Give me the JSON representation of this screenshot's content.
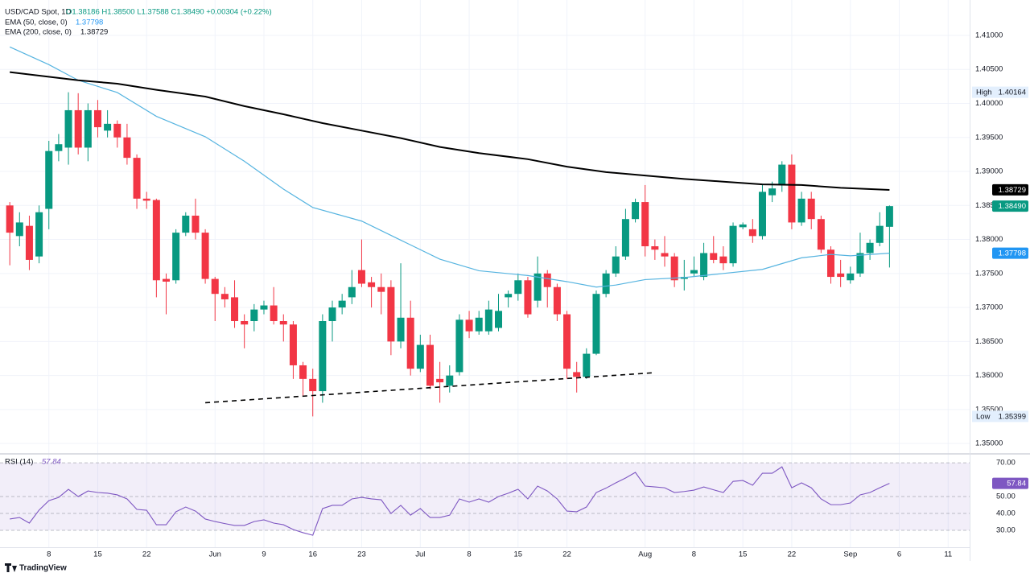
{
  "chart_data": [
    {
      "type": "candlestick",
      "title": "USD/CAD Spot, 1D",
      "subtitle": "O1.38186 H1.38500 L1.37588 C1.38490 +0.00304 (+0.22%)",
      "up_color": "#089981",
      "down_color": "#f23645",
      "x": [
        0,
        1,
        2,
        3,
        4,
        5,
        6,
        7,
        8,
        9,
        10,
        11,
        12,
        13,
        14,
        15,
        16,
        17,
        18,
        19,
        20,
        21,
        22,
        23,
        24,
        25,
        26,
        27,
        28,
        29,
        30,
        31,
        32,
        33,
        34,
        35,
        36,
        37,
        38,
        39,
        40,
        41,
        42,
        43,
        44,
        45,
        46,
        47,
        48,
        49,
        50,
        51,
        52,
        53,
        54,
        55,
        56,
        57,
        58,
        59,
        60,
        61,
        62,
        63,
        64,
        65,
        66,
        67,
        68,
        69,
        70,
        71,
        72,
        73,
        74,
        75,
        76,
        77,
        78,
        79,
        80,
        81,
        82,
        83,
        84,
        85,
        86,
        87,
        88,
        89,
        90
      ],
      "open": [
        1.385,
        1.3805,
        1.382,
        1.3775,
        1.3845,
        1.393,
        1.3935,
        1.399,
        1.3935,
        1.399,
        1.396,
        1.397,
        1.395,
        1.392,
        1.386,
        1.3858,
        1.3742,
        1.374,
        1.381,
        1.3835,
        1.381,
        1.3742,
        1.372,
        1.3715,
        1.368,
        1.368,
        1.3697,
        1.3703,
        1.368,
        1.3675,
        1.3615,
        1.3595,
        1.3577,
        1.368,
        1.37,
        1.3715,
        1.3755,
        1.3737,
        1.373,
        1.373,
        1.365,
        1.3685,
        1.361,
        1.3645,
        1.3595,
        1.3585,
        1.3605,
        1.3682,
        1.3665,
        1.3665,
        1.367,
        1.3715,
        1.372,
        1.374,
        1.371,
        1.375,
        1.373,
        1.369,
        1.3605,
        1.3598,
        1.3632,
        1.372,
        1.375,
        1.3775,
        1.383,
        1.3855,
        1.379,
        1.378,
        1.3775,
        1.3742,
        1.375,
        1.3745,
        1.378,
        1.3775,
        1.3765,
        1.3818,
        1.3815,
        1.3805,
        1.3865,
        1.388,
        1.391,
        1.3825,
        1.386,
        1.383,
        1.3785,
        1.375,
        1.374,
        1.375,
        1.378,
        1.3795,
        1.38186
      ],
      "high": [
        1.3855,
        1.384,
        1.3835,
        1.385,
        1.3945,
        1.3955,
        1.40164,
        1.4015,
        1.4,
        1.4005,
        1.399,
        1.3975,
        1.397,
        1.3925,
        1.387,
        1.386,
        1.375,
        1.3815,
        1.384,
        1.386,
        1.3815,
        1.3745,
        1.373,
        1.374,
        1.369,
        1.3705,
        1.371,
        1.373,
        1.369,
        1.368,
        1.362,
        1.361,
        1.369,
        1.371,
        1.372,
        1.3755,
        1.38,
        1.3745,
        1.375,
        1.374,
        1.3765,
        1.371,
        1.366,
        1.366,
        1.362,
        1.3615,
        1.369,
        1.3695,
        1.3695,
        1.371,
        1.372,
        1.3725,
        1.375,
        1.3745,
        1.3775,
        1.3755,
        1.3735,
        1.3695,
        1.362,
        1.364,
        1.3725,
        1.3755,
        1.379,
        1.3845,
        1.386,
        1.388,
        1.38,
        1.3805,
        1.378,
        1.377,
        1.3775,
        1.3795,
        1.3805,
        1.379,
        1.3825,
        1.3825,
        1.383,
        1.388,
        1.3885,
        1.3915,
        1.3925,
        1.387,
        1.387,
        1.3835,
        1.379,
        1.377,
        1.376,
        1.381,
        1.38,
        1.384,
        1.385
      ],
      "low": [
        1.3762,
        1.379,
        1.3755,
        1.3765,
        1.3815,
        1.3915,
        1.391,
        1.3925,
        1.3915,
        1.395,
        1.395,
        1.3935,
        1.391,
        1.3845,
        1.3845,
        1.3715,
        1.369,
        1.3735,
        1.3805,
        1.38,
        1.3735,
        1.368,
        1.37,
        1.367,
        1.364,
        1.3665,
        1.369,
        1.3675,
        1.365,
        1.3595,
        1.357,
        1.35399,
        1.356,
        1.365,
        1.369,
        1.3705,
        1.373,
        1.37,
        1.369,
        1.363,
        1.364,
        1.36,
        1.3605,
        1.358,
        1.356,
        1.3575,
        1.36,
        1.3655,
        1.366,
        1.366,
        1.3665,
        1.37,
        1.371,
        1.3685,
        1.37,
        1.37,
        1.368,
        1.3595,
        1.3575,
        1.3595,
        1.363,
        1.3715,
        1.3745,
        1.377,
        1.3825,
        1.3775,
        1.377,
        1.376,
        1.373,
        1.3725,
        1.3745,
        1.374,
        1.3765,
        1.3755,
        1.376,
        1.3815,
        1.3795,
        1.38,
        1.3855,
        1.387,
        1.3815,
        1.382,
        1.3815,
        1.378,
        1.3735,
        1.373,
        1.3735,
        1.3745,
        1.377,
        1.379,
        1.37588
      ],
      "close": [
        1.381,
        1.3825,
        1.377,
        1.384,
        1.393,
        1.394,
        1.399,
        1.3935,
        1.399,
        1.3965,
        1.397,
        1.395,
        1.392,
        1.386,
        1.3857,
        1.374,
        1.3738,
        1.381,
        1.3835,
        1.381,
        1.3742,
        1.372,
        1.3712,
        1.368,
        1.3675,
        1.3697,
        1.3703,
        1.368,
        1.3675,
        1.3615,
        1.3595,
        1.3577,
        1.368,
        1.37,
        1.371,
        1.373,
        1.3735,
        1.373,
        1.3723,
        1.365,
        1.3685,
        1.361,
        1.3645,
        1.3585,
        1.359,
        1.36,
        1.3682,
        1.3665,
        1.3685,
        1.3697,
        1.3695,
        1.372,
        1.374,
        1.369,
        1.375,
        1.373,
        1.369,
        1.361,
        1.3598,
        1.3632,
        1.372,
        1.375,
        1.3775,
        1.383,
        1.3855,
        1.379,
        1.3785,
        1.3775,
        1.374,
        1.3745,
        1.3755,
        1.378,
        1.377,
        1.3765,
        1.382,
        1.3822,
        1.3805,
        1.387,
        1.3875,
        1.391,
        1.3825,
        1.386,
        1.383,
        1.3785,
        1.3745,
        1.3745,
        1.375,
        1.378,
        1.3795,
        1.382,
        1.3849
      ],
      "series": [
        {
          "name": "EMA (50, close, 0)",
          "color": "#56b4e0",
          "last_label": "1.37798",
          "x": [
            0,
            4,
            7,
            11,
            15,
            20,
            24,
            28,
            31,
            36,
            40,
            44,
            48,
            53,
            57,
            60,
            62,
            65,
            69,
            73,
            77,
            81,
            84,
            86,
            90
          ],
          "values": [
            1.4083,
            1.4057,
            1.4034,
            1.4016,
            1.3981,
            1.3951,
            1.3915,
            1.3874,
            1.3847,
            1.3827,
            1.3799,
            1.3771,
            1.3754,
            1.3747,
            1.3738,
            1.373,
            1.3733,
            1.3741,
            1.3744,
            1.375,
            1.3756,
            1.3773,
            1.3778,
            1.3776,
            1.37798
          ]
        },
        {
          "name": "EMA (200, close, 0)",
          "color": "#000000",
          "last_label": "1.38729",
          "x": [
            0,
            7,
            11,
            15,
            20,
            24,
            28,
            32,
            36,
            40,
            44,
            48,
            53,
            57,
            61,
            65,
            69,
            73,
            77,
            81,
            85,
            90
          ],
          "values": [
            1.4046,
            1.4034,
            1.4029,
            1.402,
            1.401,
            1.3996,
            1.3984,
            1.3971,
            1.396,
            1.3949,
            1.3936,
            1.3927,
            1.3918,
            1.3907,
            1.3899,
            1.3894,
            1.3889,
            1.3885,
            1.3881,
            1.388,
            1.3876,
            1.38729
          ]
        }
      ],
      "last_price": {
        "value": 1.3849,
        "label": "1.38490"
      },
      "high_marker": {
        "text": "High",
        "value": 1.40164,
        "label": "1.40164"
      },
      "low_marker": {
        "text": "Low",
        "value": 1.35399,
        "label": "1.35399"
      },
      "trendline": {
        "x": [
          20,
          65.8
        ],
        "y": [
          1.356,
          1.3604
        ]
      },
      "xlim": [
        -1,
        98.2
      ],
      "ylim": [
        1.3486,
        1.4152
      ],
      "grid": true,
      "xticks": [
        {
          "value": 4,
          "label": "8"
        },
        {
          "value": 9,
          "label": "15"
        },
        {
          "value": 14,
          "label": "22"
        },
        {
          "value": 21,
          "label": "Jun"
        },
        {
          "value": 26,
          "label": "9"
        },
        {
          "value": 31,
          "label": "16"
        },
        {
          "value": 36,
          "label": "23"
        },
        {
          "value": 42,
          "label": "Jul"
        },
        {
          "value": 47,
          "label": "8"
        },
        {
          "value": 52,
          "label": "15"
        },
        {
          "value": 57,
          "label": "22"
        },
        {
          "value": 65,
          "label": "Aug"
        },
        {
          "value": 70,
          "label": "8"
        },
        {
          "value": 75,
          "label": "15"
        },
        {
          "value": 80,
          "label": "22"
        },
        {
          "value": 86,
          "label": "Sep"
        },
        {
          "value": 91,
          "label": "6"
        },
        {
          "value": 96,
          "label": "11"
        }
      ],
      "yticks": [
        {
          "value": 1.35,
          "label": "1.35000"
        },
        {
          "value": 1.355,
          "label": "1.35500"
        },
        {
          "value": 1.36,
          "label": "1.36000"
        },
        {
          "value": 1.365,
          "label": "1.36500"
        },
        {
          "value": 1.37,
          "label": "1.37000"
        },
        {
          "value": 1.375,
          "label": "1.37500"
        },
        {
          "value": 1.38,
          "label": "1.38000"
        },
        {
          "value": 1.385,
          "label": "1.38500"
        },
        {
          "value": 1.39,
          "label": "1.39000"
        },
        {
          "value": 1.395,
          "label": "1.39500"
        },
        {
          "value": 1.4,
          "label": "1.40000"
        },
        {
          "value": 1.405,
          "label": "1.40500"
        },
        {
          "value": 1.41,
          "label": "1.41000"
        }
      ]
    },
    {
      "type": "line",
      "band_color": "#7e57c2",
      "series": [
        {
          "name": "RSI (14)",
          "color": "#7e57c2",
          "last_label": "57.84",
          "values": [
            36.7,
            37.6,
            34.3,
            42,
            47.6,
            49.5,
            54.3,
            50,
            53.3,
            52.4,
            52,
            51,
            48.6,
            42.4,
            41.9,
            33.3,
            33.3,
            41,
            43.8,
            41.4,
            36.7,
            35.2,
            34,
            32.9,
            32.9,
            35.2,
            36.2,
            34.3,
            33.3,
            30.5,
            28.6,
            27.1,
            42.9,
            44.8,
            44.8,
            48.6,
            49.5,
            48.6,
            48.1,
            40,
            44.8,
            39,
            42.9,
            37.6,
            37.6,
            39,
            48.6,
            46.7,
            48.6,
            46.7,
            50,
            52,
            54.3,
            48.6,
            56.2,
            53.3,
            48.6,
            41.4,
            41,
            43.8,
            52.4,
            55,
            58.1,
            61,
            64.3,
            56.2,
            55.7,
            55.2,
            52.4,
            53,
            53.8,
            55.7,
            54,
            52.4,
            59,
            59.5,
            56.7,
            63.8,
            63.8,
            67.6,
            55.2,
            58.1,
            55.2,
            48.6,
            45.2,
            45.2,
            46.2,
            51,
            52.4,
            55.2,
            57.84
          ]
        }
      ],
      "ylim": [
        20,
        74.8
      ],
      "yticks": [
        {
          "value": 30,
          "label": "30.00"
        },
        {
          "value": 40,
          "label": "40.00"
        },
        {
          "value": 50,
          "label": "50.00"
        },
        {
          "value": 70,
          "label": "70.00"
        }
      ]
    }
  ],
  "footer": "TradingView"
}
